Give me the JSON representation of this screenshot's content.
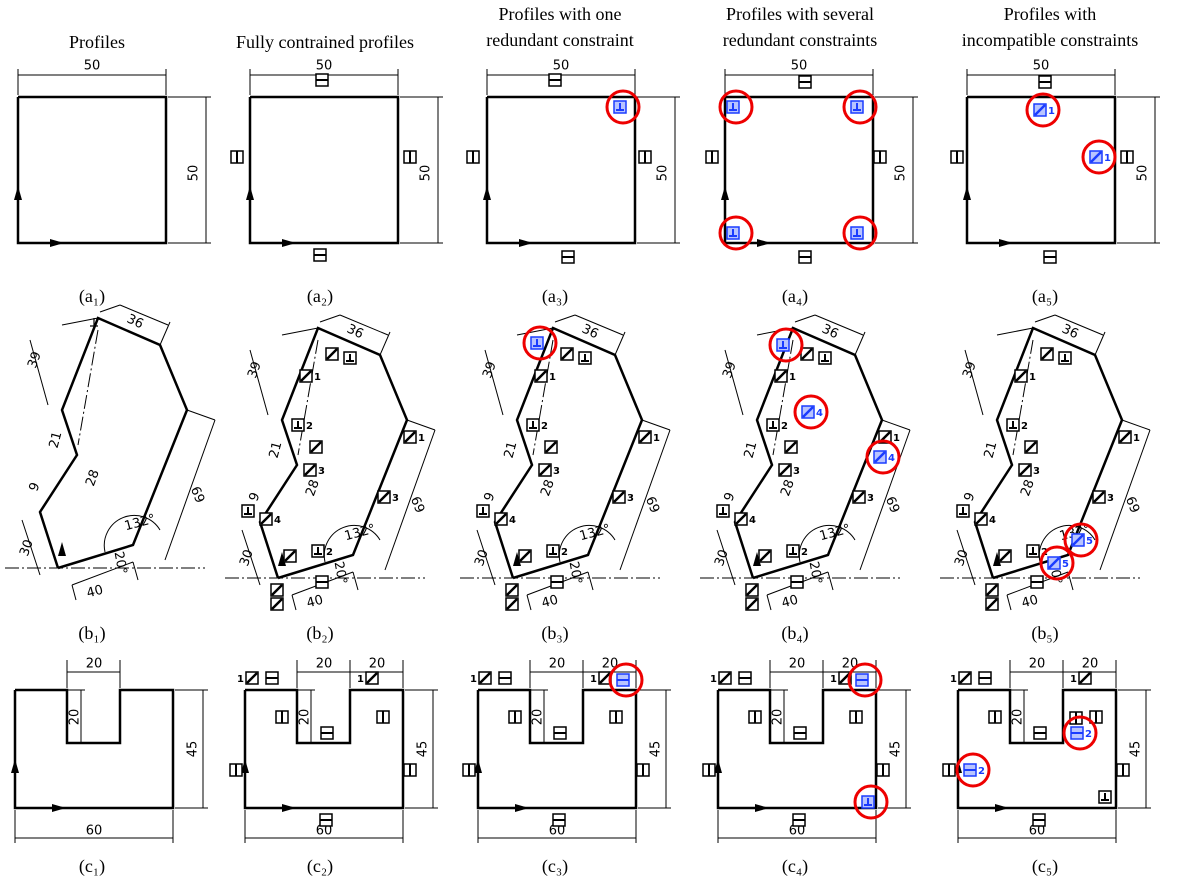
{
  "headers": [
    [
      "Profiles"
    ],
    [
      "Fully contrained profiles"
    ],
    [
      "Profiles with one",
      "redundant constraint"
    ],
    [
      "Profiles with several",
      "redundant constraints"
    ],
    [
      "Profiles with",
      "incompatible constraints"
    ]
  ],
  "panels": [
    {
      "caption": "(a₁)",
      "dims": [
        "50",
        "50"
      ],
      "numbers": []
    },
    {
      "caption": "(a₂)",
      "dims": [
        "50",
        "50"
      ],
      "numbers": []
    },
    {
      "caption": "(a₃)",
      "dims": [
        "50",
        "50"
      ],
      "numbers": []
    },
    {
      "caption": "(a₄)",
      "dims": [
        "50",
        "50"
      ],
      "numbers": []
    },
    {
      "caption": "(a₅)",
      "dims": [
        "50",
        "50"
      ],
      "numbers": [
        "1",
        "1"
      ]
    },
    {
      "caption": "(b₁)",
      "dims": [
        "36",
        "39",
        "21",
        "9",
        "28",
        "30",
        "40",
        "69",
        "132°",
        "20°"
      ],
      "numbers": []
    },
    {
      "caption": "(b₂)",
      "dims": [
        "36",
        "39",
        "21",
        "9",
        "28",
        "30",
        "40",
        "69",
        "132°",
        "20°"
      ],
      "numbers": [
        "1",
        "2",
        "3",
        "1",
        "3",
        "4",
        "2"
      ]
    },
    {
      "caption": "(b₃)",
      "dims": [
        "36",
        "39",
        "21",
        "9",
        "28",
        "30",
        "40",
        "69",
        "132°",
        "20°"
      ],
      "numbers": [
        "1",
        "2",
        "3",
        "1",
        "3",
        "4",
        "2"
      ]
    },
    {
      "caption": "(b₄)",
      "dims": [
        "36",
        "39",
        "21",
        "9",
        "28",
        "30",
        "40",
        "69",
        "132°",
        "20°"
      ],
      "numbers": [
        "1",
        "2",
        "3",
        "1",
        "3",
        "4",
        "2",
        "4",
        "4"
      ]
    },
    {
      "caption": "(b₅)",
      "dims": [
        "36",
        "39",
        "21",
        "9",
        "28",
        "30",
        "40",
        "69",
        "132°",
        "20°"
      ],
      "numbers": [
        "1",
        "2",
        "3",
        "1",
        "3",
        "4",
        "2",
        "5",
        "5"
      ]
    },
    {
      "caption": "(c₁)",
      "dims": [
        "20",
        "20",
        "45",
        "60"
      ],
      "numbers": []
    },
    {
      "caption": "(c₂)",
      "dims": [
        "20",
        "20",
        "45",
        "60",
        "20"
      ],
      "numbers": [
        "1",
        "1"
      ]
    },
    {
      "caption": "(c₃)",
      "dims": [
        "20",
        "20",
        "45",
        "60",
        "20"
      ],
      "numbers": [
        "1",
        "1"
      ]
    },
    {
      "caption": "(c₄)",
      "dims": [
        "20",
        "20",
        "45",
        "60",
        "20"
      ],
      "numbers": [
        "1",
        "1"
      ]
    },
    {
      "caption": "(c₅)",
      "dims": [
        "20",
        "20",
        "45",
        "60",
        "20"
      ],
      "numbers": [
        "1",
        "1",
        "2",
        "2"
      ]
    }
  ]
}
